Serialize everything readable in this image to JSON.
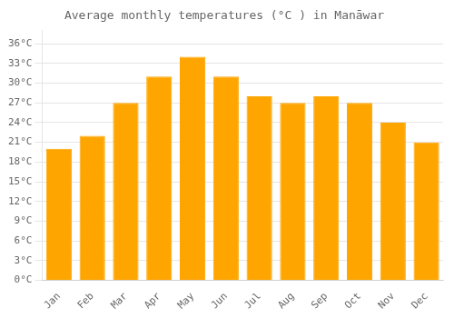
{
  "chart_data": {
    "type": "bar",
    "title": "Average monthly temperatures (°C ) in Manāwar",
    "categories": [
      "Jan",
      "Feb",
      "Mar",
      "Apr",
      "May",
      "Jun",
      "Jul",
      "Aug",
      "Sep",
      "Oct",
      "Nov",
      "Dec"
    ],
    "values": [
      20,
      22,
      27,
      31,
      34,
      31,
      28,
      27,
      28,
      27,
      24,
      21
    ],
    "color": "#FFA500",
    "ylim": [
      0,
      38
    ],
    "yticks": [
      {
        "value": 0,
        "label": "0°C"
      },
      {
        "value": 3,
        "label": "3°C"
      },
      {
        "value": 6,
        "label": "6°C"
      },
      {
        "value": 9,
        "label": "9°C"
      },
      {
        "value": 12,
        "label": "12°C"
      },
      {
        "value": 15,
        "label": "15°C"
      },
      {
        "value": 18,
        "label": "18°C"
      },
      {
        "value": 21,
        "label": "21°C"
      },
      {
        "value": 24,
        "label": "24°C"
      },
      {
        "value": 27,
        "label": "27°C"
      },
      {
        "value": 30,
        "label": "30°C"
      },
      {
        "value": 33,
        "label": "33°C"
      },
      {
        "value": 36,
        "label": "36°C"
      }
    ],
    "grid": "y"
  }
}
